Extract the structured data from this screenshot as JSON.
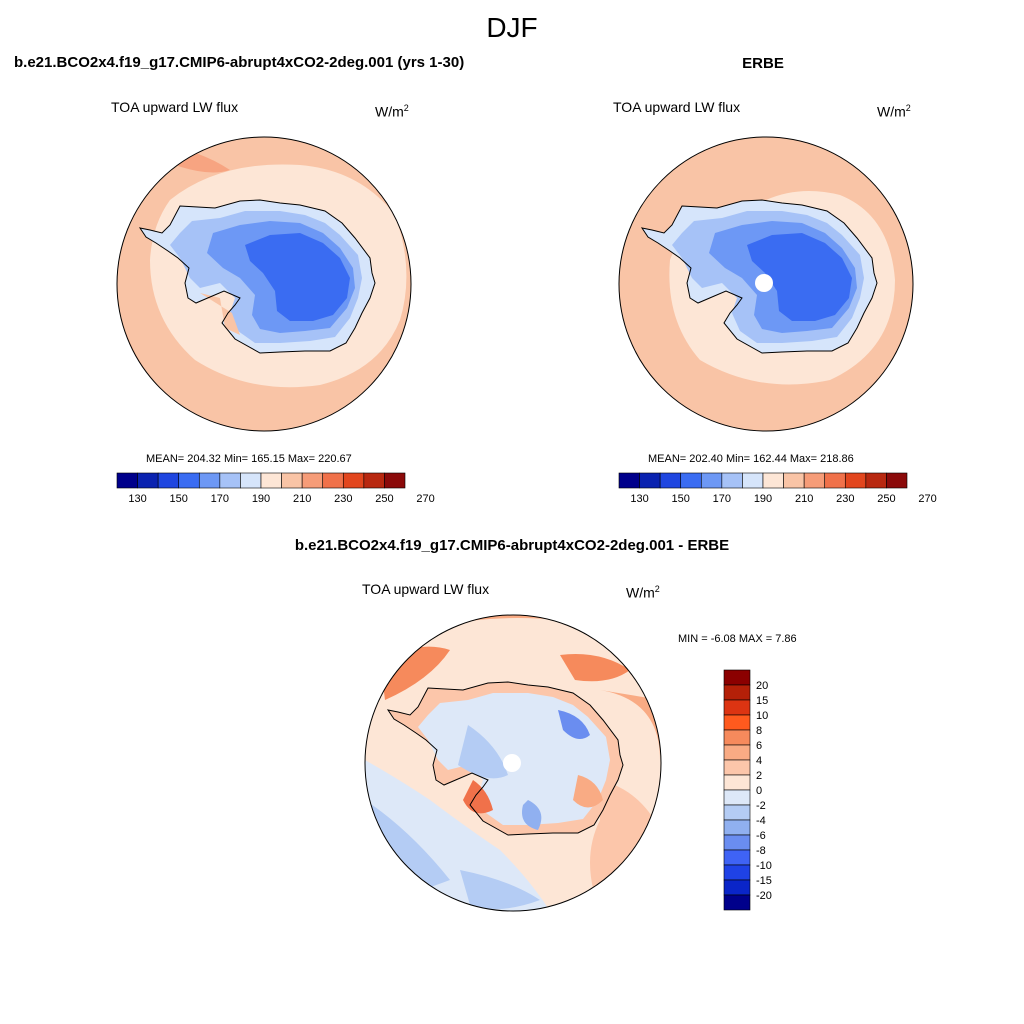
{
  "figure": {
    "title": "DJF",
    "continent_color": "#000000",
    "pole_hole_color": "#ffffff"
  },
  "panels": [
    {
      "id": "model",
      "title": "b.e21.BCO2x4.f19_g17.CMIP6-abrupt4xCO2-2deg.001 (yrs 1-30)",
      "field": "TOA upward LW flux",
      "units_base": "W/m",
      "units_exp": "2",
      "stats_text": "MEAN= 204.32  Min= 165.15  Max= 220.67",
      "mean": 204.32,
      "min": 165.15,
      "max": 220.67,
      "colorbar_ticks": [
        "130",
        "150",
        "170",
        "190",
        "210",
        "230",
        "250",
        "270"
      ]
    },
    {
      "id": "obs",
      "title": "ERBE",
      "field": "TOA upward LW flux",
      "units_base": "W/m",
      "units_exp": "2",
      "stats_text": "MEAN= 202.40  Min= 162.44  Max= 218.86",
      "mean": 202.4,
      "min": 162.44,
      "max": 218.86,
      "colorbar_ticks": [
        "130",
        "150",
        "170",
        "190",
        "210",
        "230",
        "250",
        "270"
      ]
    },
    {
      "id": "diff",
      "title": "b.e21.BCO2x4.f19_g17.CMIP6-abrupt4xCO2-2deg.001 - ERBE",
      "field": "TOA upward LW flux",
      "units_base": "W/m",
      "units_exp": "2",
      "minmax_text": "MIN =  -6.08 MAX =   7.86",
      "min": -6.08,
      "max": 7.86,
      "colorbar_ticks": [
        "20",
        "15",
        "10",
        "8",
        "6",
        "4",
        "2",
        "0",
        "-2",
        "-4",
        "-6",
        "-8",
        "-10",
        "-15",
        "-20"
      ]
    }
  ],
  "palettes": {
    "abs": [
      "#00008b",
      "#0a22b0",
      "#1f46e0",
      "#3a6cf2",
      "#6d98f5",
      "#a6c2f7",
      "#d6e5fb",
      "#fde6d6",
      "#f9c4a6",
      "#f69c78",
      "#f0714a",
      "#e2461e",
      "#b82810",
      "#8b0a0a"
    ],
    "diff": [
      "#8b0000",
      "#b42008",
      "#dc3412",
      "#ff5a1e",
      "#f68a5c",
      "#f9ab84",
      "#fcc6aa",
      "#fde6d6",
      "#dde8f8",
      "#b4ccf4",
      "#90b0f0",
      "#6a8df0",
      "#3f63f5",
      "#1f42e6",
      "#0a25c8",
      "#00008b"
    ]
  }
}
